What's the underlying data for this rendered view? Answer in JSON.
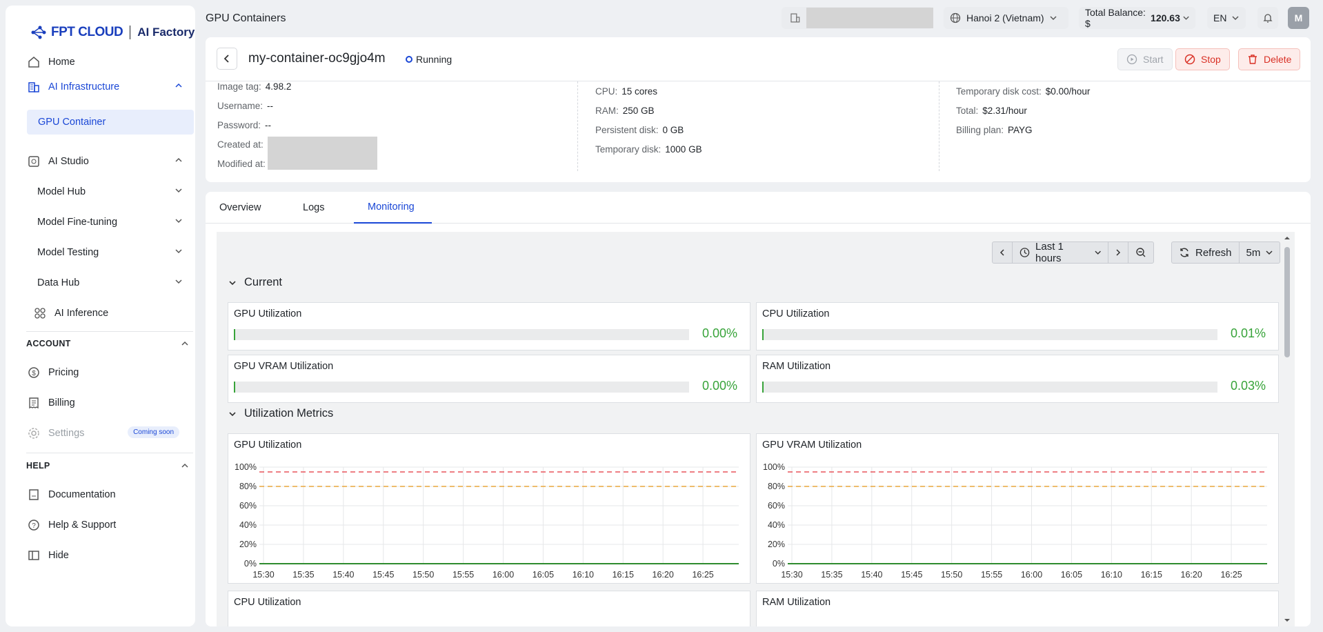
{
  "brand": {
    "name": "FPT CLOUD",
    "product": "AI Factory"
  },
  "sidebar": {
    "home": "Home",
    "ai_infra": "AI Infrastructure",
    "gpu_container": "GPU Container",
    "ai_studio": "AI Studio",
    "model_hub": "Model Hub",
    "model_finetuning": "Model Fine-tuning",
    "model_testing": "Model Testing",
    "data_hub": "Data Hub",
    "ai_inference": "AI Inference",
    "account": "ACCOUNT",
    "pricing": "Pricing",
    "billing": "Billing",
    "settings": "Settings",
    "coming_soon": "Coming soon",
    "help": "HELP",
    "documentation": "Documentation",
    "help_support": "Help & Support",
    "hide": "Hide"
  },
  "topbar": {
    "title": "GPU Containers",
    "region": "Hanoi 2 (Vietnam)",
    "balance_label": "Total Balance: $",
    "balance_value": "120.63",
    "lang": "EN",
    "avatar": "M"
  },
  "container": {
    "name": "my-container-oc9gjo4m",
    "status": "Running",
    "start": "Start",
    "stop": "Stop",
    "delete": "Delete",
    "details_left": [
      {
        "k": "Image tag:",
        "v": "4.98.2"
      },
      {
        "k": "Username:",
        "v": "--"
      },
      {
        "k": "Password:",
        "v": "--"
      },
      {
        "k": "Created at:",
        "v": ""
      },
      {
        "k": "Modified at:",
        "v": ""
      }
    ],
    "details_mid": [
      {
        "k": "CPU:",
        "v": "15 cores"
      },
      {
        "k": "RAM:",
        "v": "250 GB"
      },
      {
        "k": "Persistent disk:",
        "v": "0 GB"
      },
      {
        "k": "Temporary disk:",
        "v": "1000 GB"
      }
    ],
    "details_right": [
      {
        "k": "Temporary disk cost:",
        "v": "$0.00/hour"
      },
      {
        "k": "Total:",
        "v": "$2.31/hour"
      },
      {
        "k": "Billing plan:",
        "v": "PAYG"
      }
    ]
  },
  "tabs": [
    "Overview",
    "Logs",
    "Monitoring"
  ],
  "monitor": {
    "range": "Last 1 hours",
    "refresh": "Refresh",
    "interval": "5m",
    "group_current": "Current",
    "group_util": "Utilization Metrics",
    "current": [
      {
        "title": "GPU Utilization",
        "value": "0.00%",
        "fraction": 0.0
      },
      {
        "title": "CPU Utilization",
        "value": "0.01%",
        "fraction": 0.0001
      },
      {
        "title": "GPU VRAM Utilization",
        "value": "0.00%",
        "fraction": 0.0
      },
      {
        "title": "RAM Utilization",
        "value": "0.03%",
        "fraction": 0.0003
      }
    ],
    "lower_titles": [
      "CPU Utilization",
      "RAM Utilization"
    ]
  },
  "chart_data": [
    {
      "type": "line",
      "title": "GPU Utilization",
      "x": [
        "15:30",
        "15:35",
        "15:40",
        "15:45",
        "15:50",
        "15:55",
        "16:00",
        "16:05",
        "16:10",
        "16:15",
        "16:20",
        "16:25"
      ],
      "yticks": [
        "0%",
        "20%",
        "40%",
        "60%",
        "80%",
        "100%"
      ],
      "ylim": [
        0,
        100
      ],
      "thresholds": [
        {
          "value": 95,
          "color": "#e8535b"
        },
        {
          "value": 80,
          "color": "#e9a53c"
        }
      ],
      "series": [
        {
          "values": [
            0,
            0,
            0,
            0,
            0,
            0,
            0,
            0,
            0,
            0,
            0,
            0
          ],
          "color": "#2e8b2e"
        }
      ],
      "grid": true
    },
    {
      "type": "line",
      "title": "GPU VRAM Utilization",
      "x": [
        "15:30",
        "15:35",
        "15:40",
        "15:45",
        "15:50",
        "15:55",
        "16:00",
        "16:05",
        "16:10",
        "16:15",
        "16:20",
        "16:25"
      ],
      "yticks": [
        "0%",
        "20%",
        "40%",
        "60%",
        "80%",
        "100%"
      ],
      "ylim": [
        0,
        100
      ],
      "thresholds": [
        {
          "value": 95,
          "color": "#e8535b"
        },
        {
          "value": 80,
          "color": "#e9a53c"
        }
      ],
      "series": [
        {
          "values": [
            0,
            0,
            0,
            0,
            0,
            0,
            0,
            0,
            0,
            0,
            0,
            0
          ],
          "color": "#2e8b2e"
        }
      ],
      "grid": true
    }
  ]
}
